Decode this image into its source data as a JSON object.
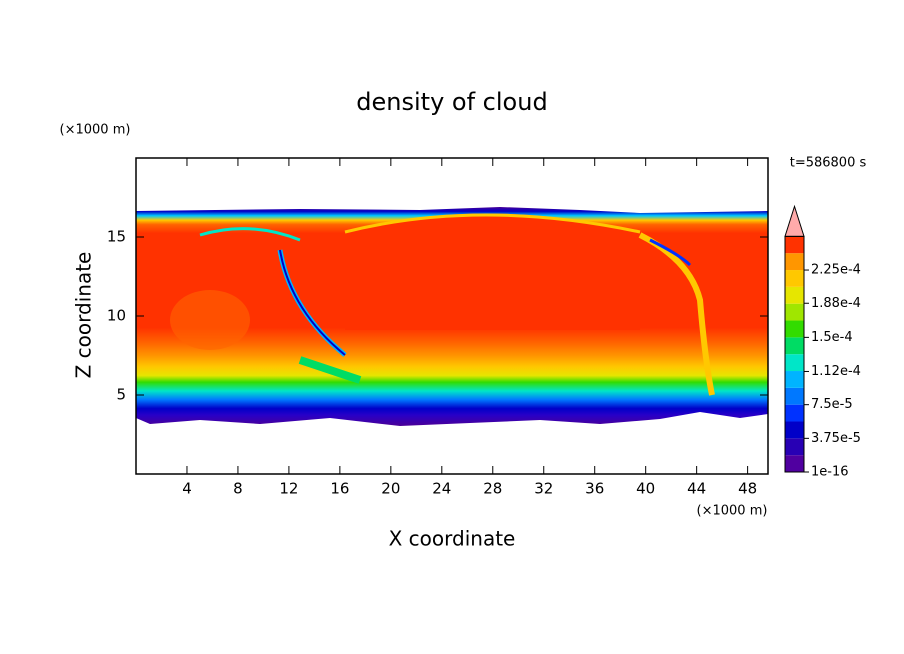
{
  "chart_data": {
    "type": "contour",
    "title": "density of cloud",
    "xlabel": "X coordinate",
    "ylabel": "Z coordinate",
    "x_unit": "(×1000 m)",
    "y_unit": "(×1000 m)",
    "annotation": "t=586800 s",
    "xlim": [
      0,
      49.6
    ],
    "ylim": [
      0,
      20
    ],
    "xticks": [
      4,
      8,
      12,
      16,
      20,
      24,
      28,
      32,
      36,
      40,
      44,
      48
    ],
    "yticks": [
      5,
      10,
      15
    ],
    "colorbar": {
      "lim": [
        1e-16,
        0.0002625
      ],
      "ticks": [
        {
          "value": 1e-16,
          "label": "1e-16"
        },
        {
          "value": 3.75e-05,
          "label": "3.75e-5"
        },
        {
          "value": 7.5e-05,
          "label": "7.5e-5"
        },
        {
          "value": 0.000112,
          "label": "1.12e-4"
        },
        {
          "value": 0.00015,
          "label": "1.5e-4"
        },
        {
          "value": 0.000188,
          "label": "1.88e-4"
        },
        {
          "value": 0.000225,
          "label": "2.25e-4"
        }
      ],
      "colors": [
        "#5000a0",
        "#2800b4",
        "#0000c8",
        "#0032ff",
        "#0078ff",
        "#00b4ff",
        "#00e6c8",
        "#00dc64",
        "#32dc00",
        "#a0e600",
        "#e6e600",
        "#ffc800",
        "#ff9600",
        "#ff3200"
      ],
      "extend_color": "#ffaaaa"
    }
  }
}
